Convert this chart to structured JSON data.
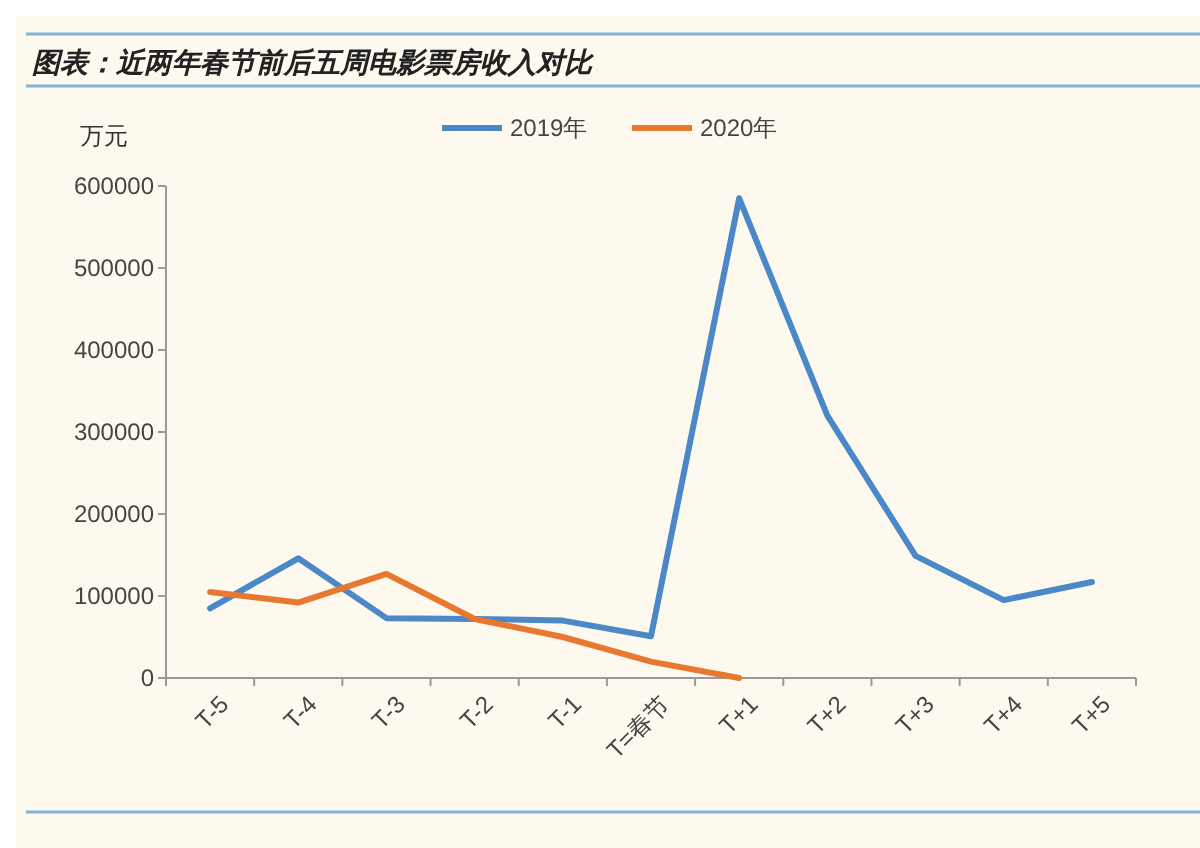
{
  "chart_data": {
    "type": "line",
    "title": "图表：近两年春节前后五周电影票房收入对比",
    "ylabel": "万元",
    "categories": [
      "T-5",
      "T-4",
      "T-3",
      "T-2",
      "T-1",
      "T=春节",
      "T+1",
      "T+2",
      "T+3",
      "T+4",
      "T+5"
    ],
    "series": [
      {
        "name": "2019年",
        "color": "#4a88c7",
        "values": [
          85000,
          146000,
          73000,
          72000,
          70000,
          51000,
          585000,
          320000,
          149000,
          95000,
          117000
        ]
      },
      {
        "name": "2020年",
        "color": "#e8782f",
        "values": [
          105000,
          92000,
          127000,
          72000,
          50000,
          20000,
          0,
          null,
          null,
          null,
          null
        ]
      }
    ],
    "ylim": [
      0,
      600000
    ],
    "yticks": [
      0,
      100000,
      200000,
      300000,
      400000,
      500000,
      600000
    ],
    "grid": false,
    "legend": "top",
    "marker": "none",
    "line_style": "solid"
  }
}
